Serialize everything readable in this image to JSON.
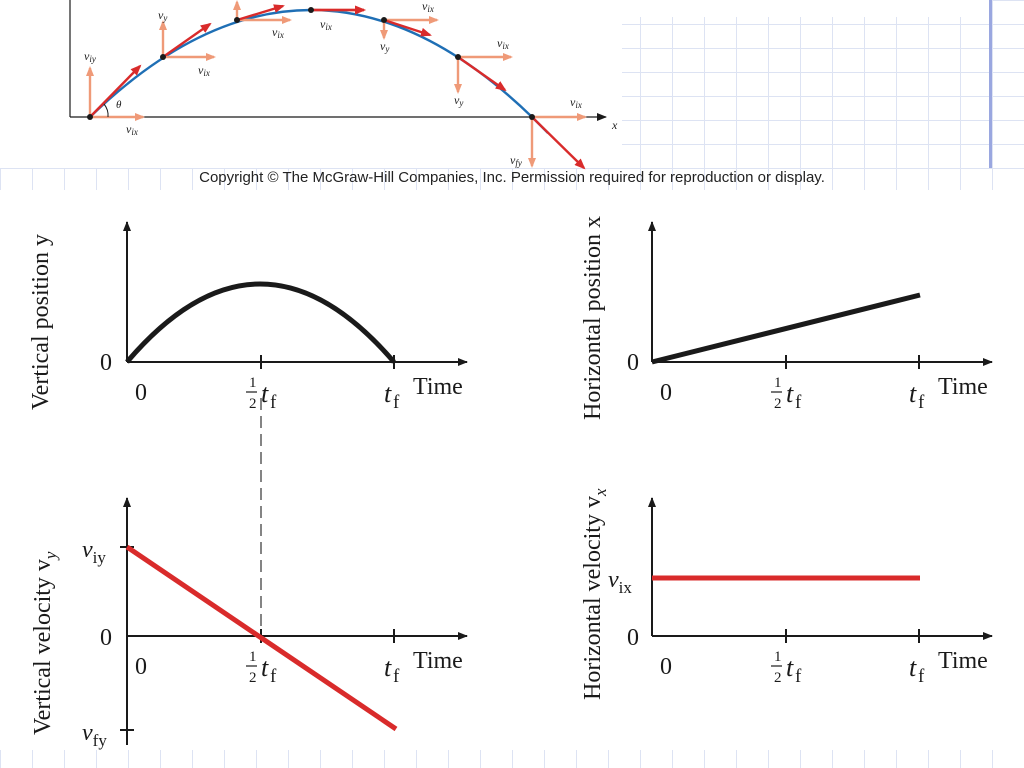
{
  "copyright": "Copyright © The McGraw-Hill Companies, Inc. Permission required for reproduction or display.",
  "colors": {
    "trajectory": "#1f6fb5",
    "velocity_arrow": "#d92b2b",
    "component_arrow": "#ef9a78",
    "curve": "#1a1a1a",
    "grid": "#dde3f3",
    "accent_bar": "#9aa7e0"
  },
  "trajectory": {
    "labels": {
      "viy": "v",
      "viy_sub": "iy",
      "vix": "v",
      "vix_sub": "ix",
      "vy": "v",
      "vy_sub": "y",
      "vfy": "v",
      "vfy_sub": "fy",
      "theta": "θ",
      "x_axis": "x"
    }
  },
  "graphs": {
    "vertical_position": {
      "ylabel": "Vertical position y",
      "zero": "0"
    },
    "horizontal_position": {
      "ylabel": "Horizontal position x",
      "zero": "0"
    },
    "vertical_velocity": {
      "ylabel": "Vertical velocity v",
      "ylabel_sub": "y",
      "zero": "0",
      "v_top": "v",
      "v_top_sub": "iy",
      "v_bottom": "v",
      "v_bottom_sub": "fy"
    },
    "horizontal_velocity": {
      "ylabel": "Horizontal velocity v",
      "ylabel_sub": "x",
      "zero": "0",
      "v_mid": "v",
      "v_mid_sub": "ix"
    },
    "x_ticks": {
      "zero": "0",
      "half_num": "1",
      "half_den": "2",
      "t": "t",
      "t_sub": "f",
      "time": "Time"
    }
  }
}
